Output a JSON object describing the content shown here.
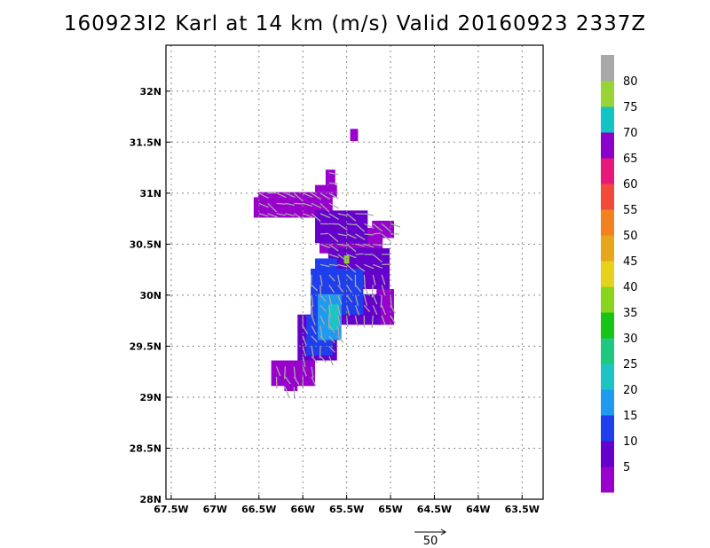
{
  "title": "160923I2 Karl at 14 km (m/s) Valid 20160923 2337Z",
  "chart_data": {
    "type": "heatmap",
    "title": "160923I2 Karl at 14 km (m/s) Valid 20160923 2337Z",
    "xlim": [
      -67.56,
      -63.26
    ],
    "ylim": [
      28.0,
      32.45
    ],
    "x_ticks": [
      -67.5,
      -67.0,
      -66.5,
      -66.0,
      -65.5,
      -65.0,
      -64.5,
      -64.0,
      -63.5
    ],
    "x_tick_labels": [
      "67.5W",
      "67W",
      "66.5W",
      "66W",
      "65.5W",
      "65W",
      "64.5W",
      "64W",
      "63.5W"
    ],
    "y_ticks": [
      28.0,
      28.5,
      29.0,
      29.5,
      30.0,
      30.5,
      31.0,
      31.5,
      32.0
    ],
    "y_tick_labels": [
      "28N",
      "28.5N",
      "29N",
      "29.5N",
      "30N",
      "30.5N",
      "31N",
      "31.5N",
      "32N"
    ],
    "grid": true,
    "colorbar": {
      "levels": [
        "5",
        "10",
        "15",
        "20",
        "25",
        "30",
        "35",
        "40",
        "45",
        "50",
        "55",
        "60",
        "65",
        "70",
        "75",
        "80"
      ],
      "colors": [
        "#9900cc",
        "#6600cc",
        "#1f3fee",
        "#1e9af0",
        "#1dc4c4",
        "#1ec880",
        "#19c419",
        "#8ad41c",
        "#e6d21a",
        "#e8a61c",
        "#f28220",
        "#f2493a",
        "#e8187a",
        "#8c00cc",
        "#14c4c4",
        "#98d436",
        "#a8a8a8"
      ]
    },
    "reference_vector": {
      "label": "50",
      "value": 50
    },
    "cell_size_deg": [
      0.05,
      0.05
    ],
    "regions": [
      {
        "value": 5,
        "rects": [
          [
            -66.56,
            30.76,
            -65.66,
            30.96
          ],
          [
            -66.51,
            30.96,
            -65.61,
            31.01
          ],
          [
            -65.86,
            31.01,
            -65.61,
            31.08
          ],
          [
            -65.74,
            31.08,
            -65.63,
            31.23
          ],
          [
            -65.46,
            31.51,
            -65.37,
            31.63
          ],
          [
            -65.81,
            30.41,
            -65.09,
            30.66
          ],
          [
            -65.21,
            30.56,
            -64.96,
            30.73
          ],
          [
            -65.16,
            29.71,
            -64.96,
            30.06
          ],
          [
            -66.36,
            29.11,
            -65.86,
            29.36
          ],
          [
            -66.21,
            29.06,
            -66.06,
            29.16
          ],
          [
            -65.96,
            29.41,
            -65.71,
            29.66
          ]
        ]
      },
      {
        "value": 10,
        "rects": [
          [
            -65.86,
            30.51,
            -65.26,
            30.83
          ],
          [
            -65.71,
            30.06,
            -65.01,
            30.46
          ],
          [
            -66.06,
            29.36,
            -65.61,
            29.81
          ],
          [
            -65.56,
            29.71,
            -65.11,
            30.01
          ]
        ]
      },
      {
        "value": 15,
        "rects": [
          [
            -65.91,
            29.81,
            -65.31,
            30.26
          ],
          [
            -65.96,
            29.41,
            -65.66,
            29.81
          ],
          [
            -65.86,
            30.21,
            -65.61,
            30.36
          ]
        ]
      },
      {
        "value": 20,
        "rects": [
          [
            -65.83,
            29.56,
            -65.56,
            30.01
          ]
        ]
      },
      {
        "value": 25,
        "rects": [
          [
            -65.71,
            29.66,
            -65.59,
            29.91
          ]
        ]
      },
      {
        "value": 40,
        "rects": [
          [
            -65.53,
            30.31,
            -65.47,
            30.39
          ]
        ]
      }
    ]
  }
}
